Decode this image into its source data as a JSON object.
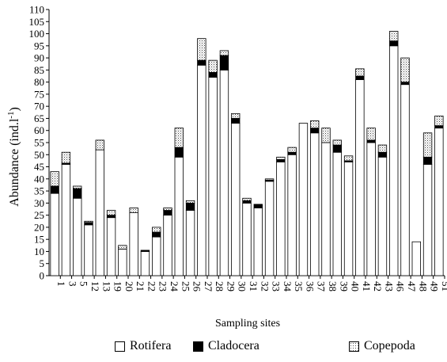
{
  "chart_data": {
    "type": "bar",
    "stacked": true,
    "ylabel": "Abundance (ind.l",
    "ylabel_sup": "-1",
    "ylabel_close": ")",
    "xlabel": "Sampling sites",
    "ylim": [
      0,
      110
    ],
    "ytick_step": 5,
    "grid": false,
    "legend_position": "bottom",
    "categories": [
      "1",
      "3",
      "5",
      "12",
      "13",
      "19",
      "20",
      "21",
      "22",
      "23",
      "24",
      "25",
      "26",
      "27",
      "28",
      "29",
      "30",
      "31",
      "32",
      "33",
      "34",
      "35",
      "36",
      "37",
      "38",
      "39",
      "40",
      "41",
      "42",
      "43",
      "46",
      "47",
      "48",
      "49",
      "51"
    ],
    "series": [
      {
        "name": "Rotifera",
        "fill": "#ffffff",
        "values": [
          34,
          46,
          32,
          21,
          52,
          24,
          11,
          26,
          10,
          16,
          25,
          49,
          27,
          87,
          82,
          85,
          63,
          30,
          28,
          39,
          47,
          50,
          63,
          59,
          55,
          51,
          47,
          81,
          55,
          49,
          95,
          79,
          14,
          46,
          61
        ]
      },
      {
        "name": "Cladocera",
        "fill": "#000000",
        "values": [
          3,
          0.5,
          4,
          1,
          0,
          1,
          0,
          0,
          0.5,
          2,
          2,
          4,
          3,
          2,
          2,
          6,
          2,
          1,
          1.5,
          0.5,
          1,
          1,
          0,
          2,
          0,
          3,
          0.5,
          1.5,
          1,
          2,
          2,
          1,
          0,
          3,
          1
        ]
      },
      {
        "name": "Copepoda",
        "fill": "#e2e2e2",
        "values": [
          6,
          4.5,
          1,
          0.5,
          4,
          2,
          1.5,
          2,
          0,
          2,
          1,
          8,
          1,
          9,
          5,
          2,
          2,
          1,
          0,
          0.5,
          1,
          2,
          0,
          3,
          6,
          2,
          2,
          3,
          5,
          3,
          4,
          10,
          0,
          10,
          4
        ]
      }
    ]
  }
}
